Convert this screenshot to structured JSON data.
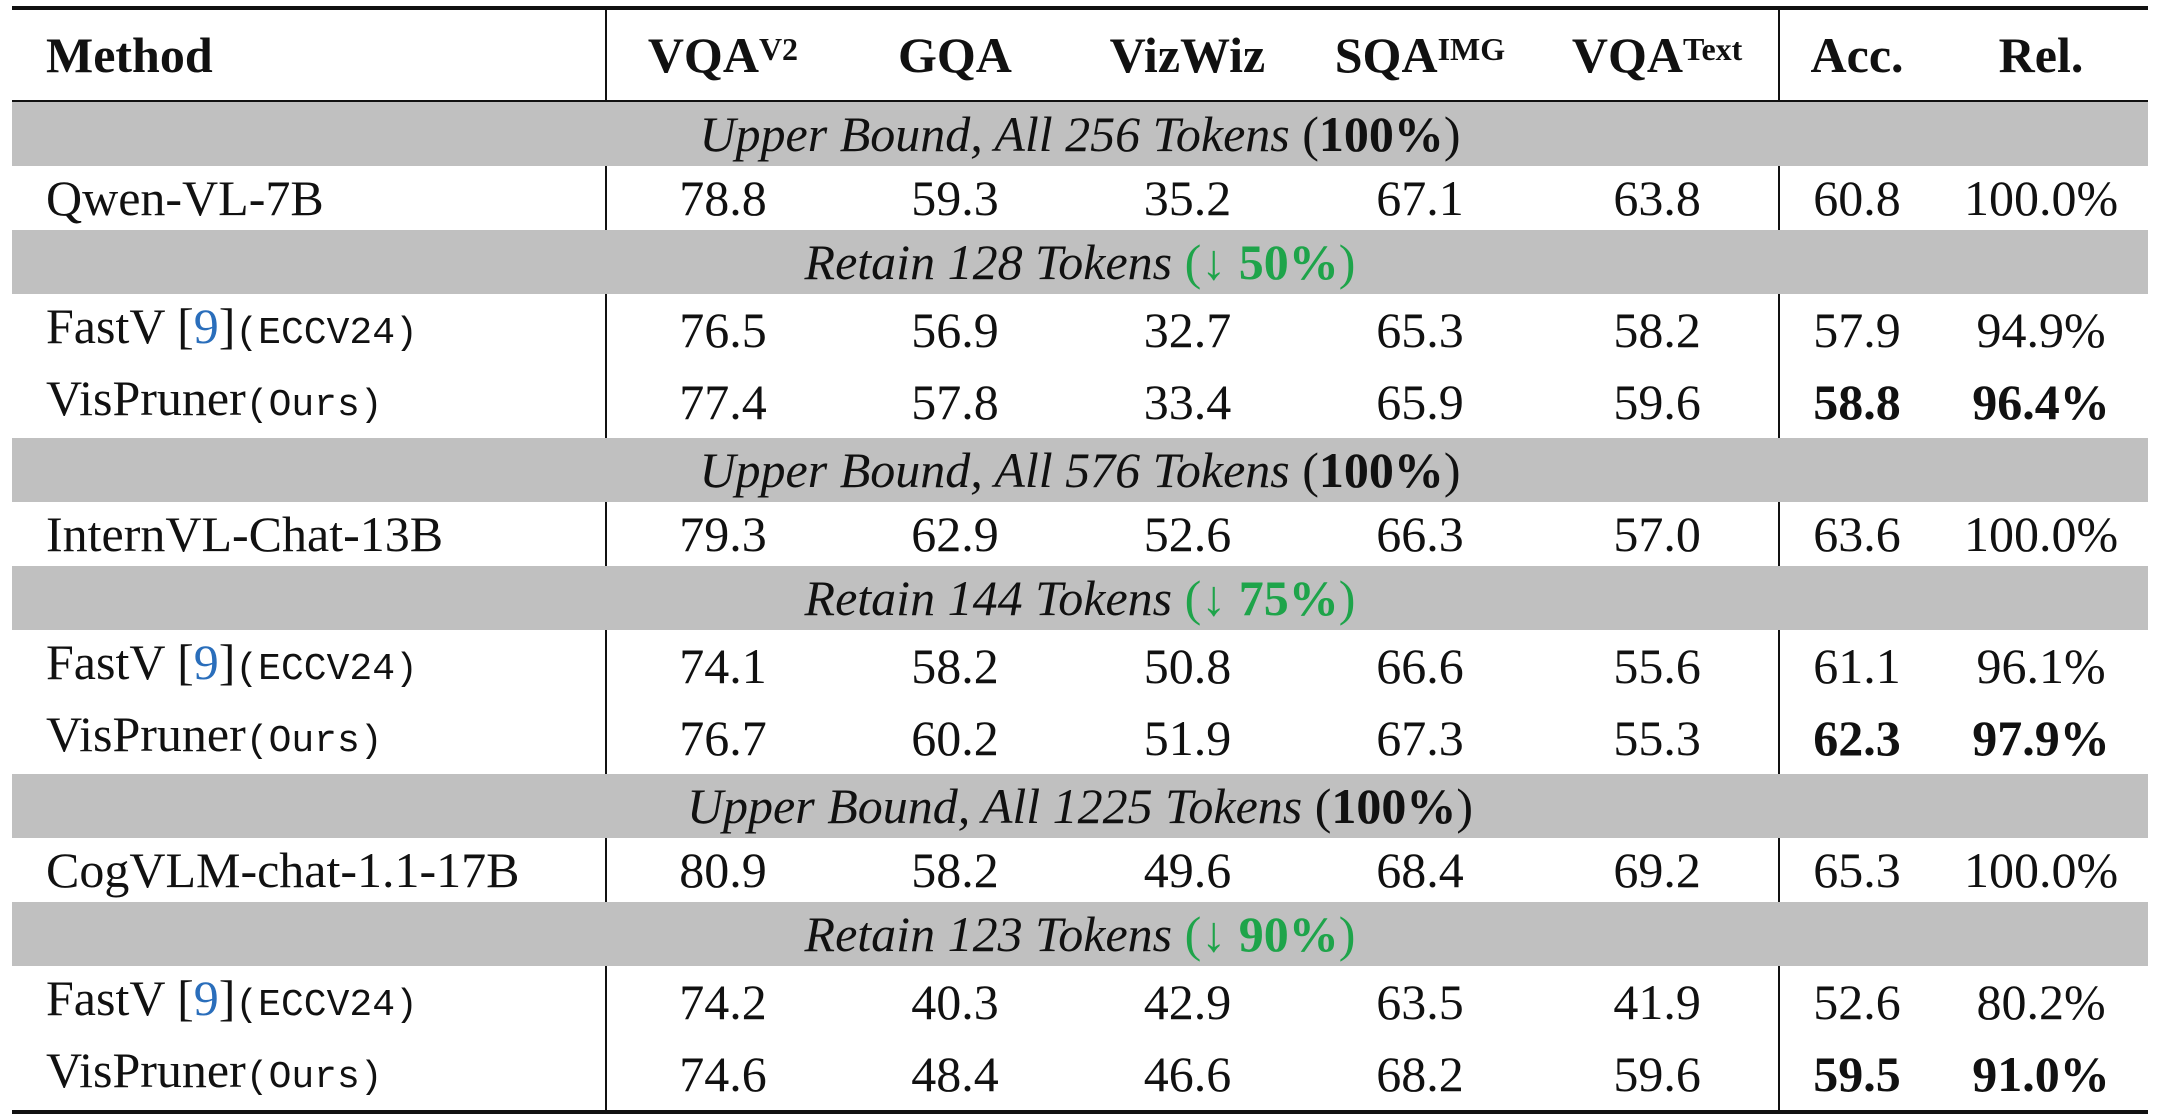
{
  "headers": {
    "method": "Method",
    "cols": [
      {
        "base": "VQA",
        "sup": "V2"
      },
      {
        "base": "GQA",
        "sup": ""
      },
      {
        "base": "VizWiz",
        "sup": ""
      },
      {
        "base": "SQA",
        "sup": "IMG"
      },
      {
        "base": "VQA",
        "sup": "Text"
      },
      {
        "base": "Acc.",
        "sup": ""
      },
      {
        "base": "Rel.",
        "sup": ""
      }
    ]
  },
  "groups": [
    {
      "upper": {
        "text": "Upper Bound, All 256 Tokens ",
        "pct": "100%"
      },
      "base_row": {
        "method": "Qwen-VL-7B",
        "values": [
          "78.8",
          "59.3",
          "35.2",
          "67.1",
          "63.8",
          "60.8",
          "100.0%"
        ]
      },
      "retain": {
        "text": "Retain 128 Tokens ",
        "arrow": "↓",
        "pct": "50%"
      },
      "rows": [
        {
          "method": "FastV ",
          "cite": "9",
          "tag": "(ECCV24)",
          "values": [
            "76.5",
            "56.9",
            "32.7",
            "65.3",
            "58.2",
            "57.9",
            "94.9%"
          ]
        },
        {
          "method": "VisPruner",
          "tag": "(Ours)",
          "values": [
            "77.4",
            "57.8",
            "33.4",
            "65.9",
            "59.6",
            "58.8",
            "96.4%"
          ]
        }
      ]
    },
    {
      "upper": {
        "text": "Upper Bound, All 576 Tokens ",
        "pct": "100%"
      },
      "base_row": {
        "method": "InternVL-Chat-13B",
        "values": [
          "79.3",
          "62.9",
          "52.6",
          "66.3",
          "57.0",
          "63.6",
          "100.0%"
        ]
      },
      "retain": {
        "text": "Retain 144 Tokens ",
        "arrow": "↓",
        "pct": "75%"
      },
      "rows": [
        {
          "method": "FastV ",
          "cite": "9",
          "tag": "(ECCV24)",
          "values": [
            "74.1",
            "58.2",
            "50.8",
            "66.6",
            "55.6",
            "61.1",
            "96.1%"
          ]
        },
        {
          "method": "VisPruner",
          "tag": "(Ours)",
          "values": [
            "76.7",
            "60.2",
            "51.9",
            "67.3",
            "55.3",
            "62.3",
            "97.9%"
          ]
        }
      ]
    },
    {
      "upper": {
        "text": "Upper Bound, All 1225 Tokens ",
        "pct": "100%"
      },
      "base_row": {
        "method": "CogVLM-chat-1.1-17B",
        "values": [
          "80.9",
          "58.2",
          "49.6",
          "68.4",
          "69.2",
          "65.3",
          "100.0%"
        ]
      },
      "retain": {
        "text": "Retain 123 Tokens ",
        "arrow": "↓",
        "pct": "90%"
      },
      "rows": [
        {
          "method": "FastV ",
          "cite": "9",
          "tag": "(ECCV24)",
          "values": [
            "74.2",
            "40.3",
            "42.9",
            "63.5",
            "41.9",
            "52.6",
            "80.2%"
          ]
        },
        {
          "method": "VisPruner",
          "tag": "(Ours)",
          "values": [
            "74.6",
            "48.4",
            "46.6",
            "68.2",
            "59.6",
            "59.5",
            "91.0%"
          ]
        }
      ]
    }
  ]
}
